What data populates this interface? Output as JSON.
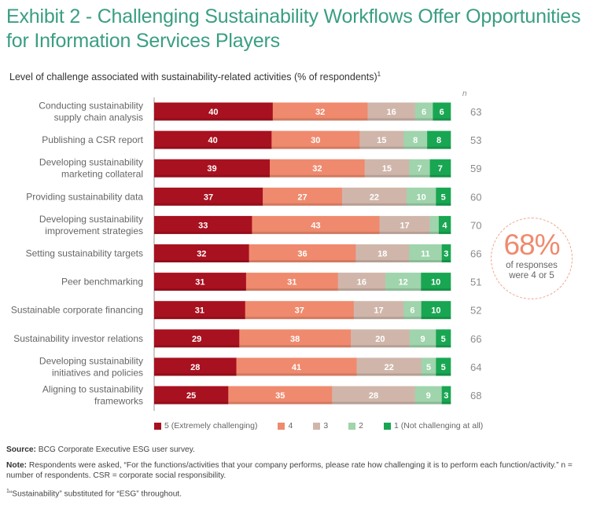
{
  "header": {
    "title": "Exhibit 2 - Challenging Sustainability Workflows Offer Opportunities for Information Services Players",
    "subtitle": "Level of challenge associated with sustainability-related activities (% of respondents)",
    "subtitle_footnote": "1",
    "n_header": "n"
  },
  "colors": {
    "5": "#a8111f",
    "4": "#ef8a6e",
    "3": "#d0b6aa",
    "2": "#9fd4ac",
    "1": "#19a652",
    "title": "#3a9e83",
    "callout": "#ef8a6e"
  },
  "chart_data": {
    "type": "bar",
    "orientation": "horizontal-stacked-100",
    "title": "Level of challenge associated with sustainability-related activities (% of respondents)",
    "xlabel": "",
    "ylabel": "",
    "xlim": [
      0,
      100
    ],
    "legend_position": "bottom",
    "categories": [
      "Conducting sustainability supply chain analysis",
      "Publishing a CSR report",
      "Developing sustainability marketing collateral",
      "Providing sustainability data",
      "Developing sustainability improvement strategies",
      "Setting sustainability targets",
      "Peer benchmarking",
      "Sustainable corporate financing",
      "Sustainability investor relations",
      "Developing sustainability initiatives and policies",
      "Aligning to sustainability frameworks"
    ],
    "category_lines": [
      [
        "Conducting sustainability",
        "supply chain analysis"
      ],
      [
        "Publishing a CSR report"
      ],
      [
        "Developing sustainability",
        "marketing collateral"
      ],
      [
        "Providing sustainability data"
      ],
      [
        "Developing sustainability",
        "improvement strategies"
      ],
      [
        "Setting sustainability targets"
      ],
      [
        "Peer benchmarking"
      ],
      [
        "Sustainable corporate financing"
      ],
      [
        "Sustainability investor relations"
      ],
      [
        "Developing sustainability",
        "initiatives and policies"
      ],
      [
        "Aligning to sustainability",
        "frameworks"
      ]
    ],
    "series": [
      {
        "name": "5 (Extremely challenging)",
        "key": "5",
        "values": [
          40,
          40,
          39,
          37,
          33,
          32,
          31,
          31,
          29,
          28,
          25
        ],
        "labels_shown": [
          true,
          true,
          true,
          true,
          true,
          true,
          true,
          true,
          true,
          true,
          true
        ]
      },
      {
        "name": "4",
        "key": "4",
        "values": [
          32,
          30,
          32,
          27,
          43,
          36,
          31,
          37,
          38,
          41,
          35
        ],
        "labels_shown": [
          true,
          true,
          true,
          true,
          true,
          true,
          true,
          true,
          true,
          true,
          true
        ]
      },
      {
        "name": "3",
        "key": "3",
        "values": [
          16,
          15,
          15,
          22,
          17,
          18,
          16,
          17,
          20,
          22,
          28
        ],
        "labels_shown": [
          true,
          true,
          true,
          true,
          true,
          true,
          true,
          true,
          true,
          true,
          true
        ]
      },
      {
        "name": "2",
        "key": "2",
        "values": [
          6,
          8,
          7,
          10,
          3,
          11,
          12,
          6,
          9,
          5,
          9
        ],
        "labels_shown": [
          true,
          true,
          true,
          true,
          false,
          true,
          true,
          true,
          true,
          true,
          true
        ]
      },
      {
        "name": "1 (Not challenging at all)",
        "key": "1",
        "values": [
          6,
          8,
          7,
          5,
          4,
          3,
          10,
          10,
          5,
          5,
          3
        ],
        "labels_shown": [
          true,
          true,
          true,
          true,
          true,
          true,
          true,
          true,
          true,
          true,
          true
        ]
      }
    ],
    "n": [
      63,
      53,
      59,
      60,
      70,
      66,
      51,
      52,
      66,
      64,
      68
    ]
  },
  "callout": {
    "value": "68%",
    "line1": "of responses",
    "line2": "were 4 or 5"
  },
  "legend": [
    {
      "key": "5",
      "label": "5 (Extremely challenging)"
    },
    {
      "key": "4",
      "label": "4"
    },
    {
      "key": "3",
      "label": "3"
    },
    {
      "key": "2",
      "label": "2"
    },
    {
      "key": "1",
      "label": "1 (Not challenging at all)"
    }
  ],
  "footer": {
    "source_label": "Source:",
    "source_text": " BCG Corporate Executive ESG user survey.",
    "note_label": "Note:",
    "note_text": " Respondents were asked, “For the functions/activities that your company performs, please rate how challenging it is to perform each function/activity.” n = number of respondents. CSR = corporate social responsibility.",
    "footnote_marker": "1",
    "footnote_text": "“Sustainability” substituted for “ESG” throughout."
  }
}
